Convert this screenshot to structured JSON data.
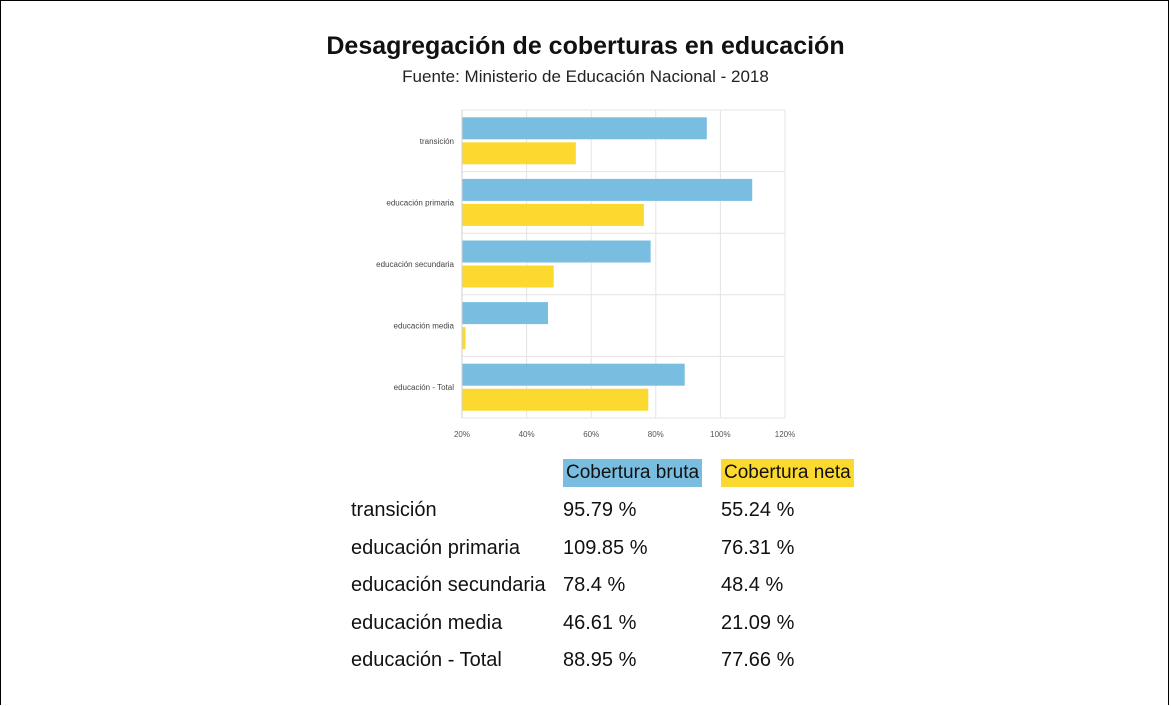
{
  "chart_data": {
    "type": "bar",
    "orientation": "horizontal",
    "title": "Desagregación de coberturas en educación",
    "subtitle": "Fuente: Ministerio de Educación Nacional - 2018",
    "categories": [
      "transición",
      "educación primaria",
      "educación secundaria",
      "educación media",
      "educación - Total"
    ],
    "series": [
      {
        "name": "Cobertura bruta",
        "color": "#79bde0",
        "values": [
          95.79,
          109.85,
          78.4,
          46.61,
          88.95
        ]
      },
      {
        "name": "Cobertura neta",
        "color": "#fcd92f",
        "values": [
          55.24,
          76.31,
          48.4,
          21.09,
          77.66
        ]
      }
    ],
    "xlim": [
      20,
      120
    ],
    "xticks": [
      "20%",
      "40%",
      "60%",
      "80%",
      "100%",
      "120%"
    ],
    "grid": true,
    "legend_position": "bottom (table)"
  },
  "table": {
    "headers": {
      "bruta": "Cobertura bruta",
      "neta": "Cobertura neta"
    },
    "rows": [
      {
        "label": "transición",
        "bruta": "95.79 %",
        "neta": "55.24 %"
      },
      {
        "label": "educación primaria",
        "bruta": "109.85 %",
        "neta": "76.31 %"
      },
      {
        "label": "educación secundaria",
        "bruta": "78.4 %",
        "neta": "48.4 %"
      },
      {
        "label": "educación media",
        "bruta": "46.61 %",
        "neta": "21.09 %"
      },
      {
        "label": "educación - Total",
        "bruta": "88.95 %",
        "neta": "77.66 %"
      }
    ]
  }
}
